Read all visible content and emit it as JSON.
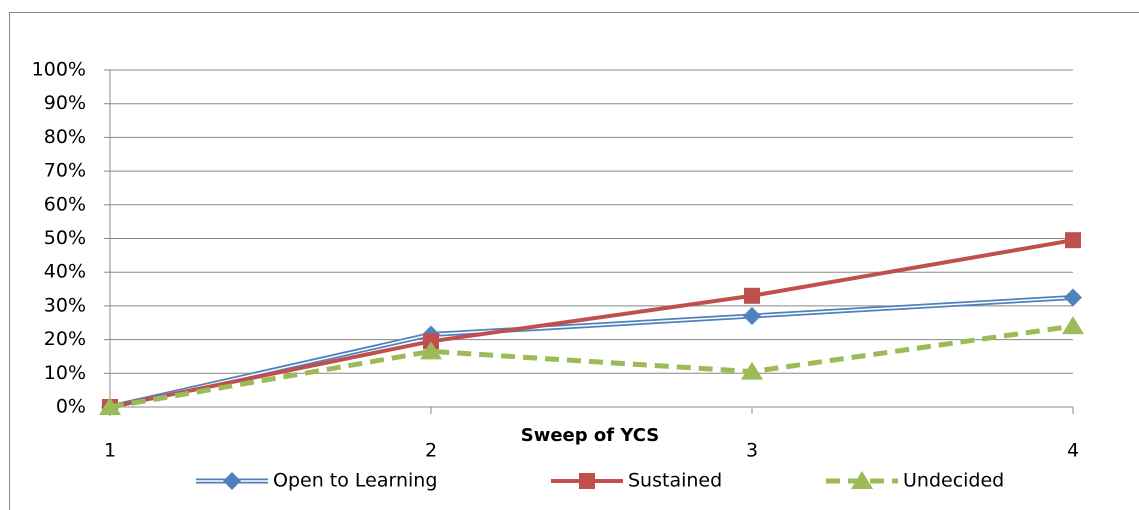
{
  "chart_data": {
    "type": "line",
    "x_label": "Sweep of YCS",
    "x": [
      1,
      2,
      3,
      4
    ],
    "xlim": [
      1,
      4
    ],
    "xticks": [
      1,
      2,
      3,
      4
    ],
    "ylim": [
      0,
      100
    ],
    "yticks": [
      {
        "value": 0,
        "label": "0%"
      },
      {
        "value": 10,
        "label": "10%"
      },
      {
        "value": 20,
        "label": "20%"
      },
      {
        "value": 30,
        "label": "30%"
      },
      {
        "value": 40,
        "label": "40%"
      },
      {
        "value": 50,
        "label": "50%"
      },
      {
        "value": 60,
        "label": "60%"
      },
      {
        "value": 70,
        "label": "70%"
      },
      {
        "value": 80,
        "label": "80%"
      },
      {
        "value": 90,
        "label": "90%"
      },
      {
        "value": 100,
        "label": "100%"
      }
    ],
    "grid": true,
    "legend": "bottom",
    "series": [
      {
        "name": "Open to Learning",
        "color": "#4f81bd",
        "marker": "diamond",
        "values": [
          0,
          21.5,
          27,
          32.5
        ]
      },
      {
        "name": "Sustained",
        "color": "#c0504d",
        "marker": "square",
        "values": [
          0,
          19.5,
          33,
          49.5
        ]
      },
      {
        "name": "Undecided",
        "color": "#9bbb59",
        "marker": "triangle",
        "dashed": true,
        "values": [
          0,
          16.5,
          10.5,
          24
        ]
      }
    ]
  }
}
